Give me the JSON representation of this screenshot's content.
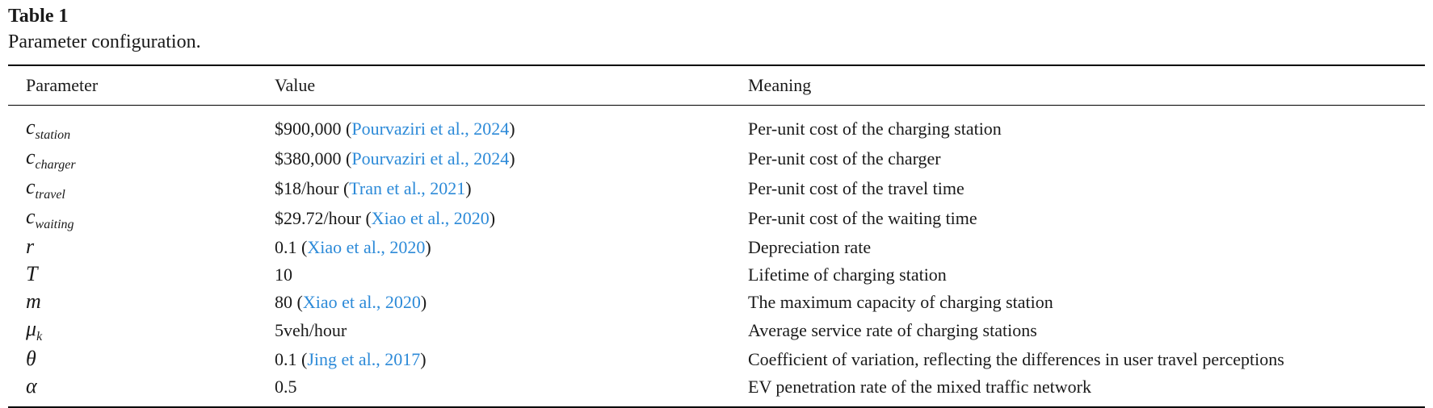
{
  "caption": {
    "label": "Table 1",
    "text": "Parameter configuration."
  },
  "table": {
    "headers": [
      "Parameter",
      "Value",
      "Meaning"
    ],
    "rows": [
      {
        "base": "c",
        "sub": "station",
        "value": "$900,000 (",
        "ref": "Pourvaziri et al., 2024",
        "close": ")",
        "meaning": "Per-unit cost of the charging station"
      },
      {
        "base": "c",
        "sub": "charger",
        "value": "$380,000 (",
        "ref": "Pourvaziri et al., 2024",
        "close": ")",
        "meaning": "Per-unit cost of the charger"
      },
      {
        "base": "c",
        "sub": "travel",
        "value": "$18/hour (",
        "ref": "Tran et al., 2021",
        "close": ")",
        "meaning": "Per-unit cost of the travel time"
      },
      {
        "base": "c",
        "sub": "waiting",
        "value": "$29.72/hour (",
        "ref": "Xiao et al., 2020",
        "close": ")",
        "meaning": "Per-unit cost of the waiting time"
      },
      {
        "base": "r",
        "sub": "",
        "value": "0.1 (",
        "ref": "Xiao et al., 2020",
        "close": ")",
        "meaning": "Depreciation rate"
      },
      {
        "base": "T",
        "sub": "",
        "value": "10",
        "ref": "",
        "close": "",
        "meaning": "Lifetime of charging station"
      },
      {
        "base": "m",
        "sub": "",
        "value": "80 (",
        "ref": "Xiao et al., 2020",
        "close": ")",
        "meaning": "The maximum capacity of charging station"
      },
      {
        "base": "μ",
        "sub": "k",
        "value": "5veh/hour",
        "ref": "",
        "close": "",
        "meaning": "Average service rate of charging stations"
      },
      {
        "base": "θ",
        "sub": "",
        "value": "0.1 (",
        "ref": "Jing et al., 2017",
        "close": ")",
        "meaning": "Coefficient of variation, reflecting the differences in user travel perceptions"
      },
      {
        "base": "α",
        "sub": "",
        "value": "0.5",
        "ref": "",
        "close": "",
        "meaning": "EV penetration rate of the mixed traffic network"
      }
    ]
  },
  "colors": {
    "reference_link": "#2c8ad8",
    "text": "#1a1a1a"
  }
}
